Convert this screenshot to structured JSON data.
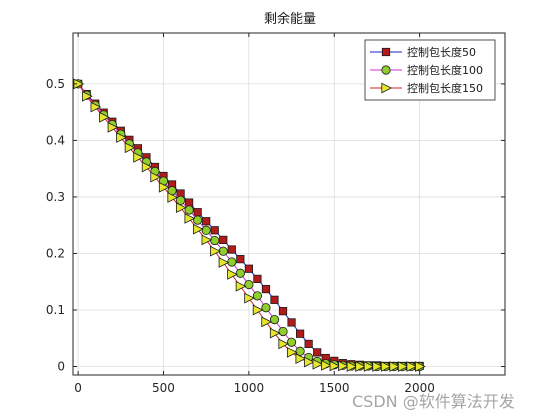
{
  "watermark": "CSDN @软件算法开发",
  "chart_data": {
    "type": "line",
    "title": "剩余能量",
    "xlabel": "",
    "ylabel": "",
    "xlim": [
      -30,
      2500
    ],
    "ylim": [
      -0.015,
      0.59
    ],
    "xticks": [
      0,
      500,
      1000,
      1500,
      2000
    ],
    "yticks": [
      0,
      0.1,
      0.2,
      0.3,
      0.4,
      0.5
    ],
    "xtick_labels": [
      "0",
      "500",
      "1000",
      "1500",
      "2000"
    ],
    "ytick_labels": [
      "0",
      "0.1",
      "0.2",
      "0.3",
      "0.4",
      "0.5"
    ],
    "grid": true,
    "legend_position": "top-right",
    "x": [
      0,
      50,
      100,
      150,
      200,
      250,
      300,
      350,
      400,
      450,
      500,
      550,
      600,
      650,
      700,
      750,
      800,
      850,
      900,
      950,
      1000,
      1050,
      1100,
      1150,
      1200,
      1250,
      1300,
      1350,
      1400,
      1450,
      1500,
      1550,
      1600,
      1650,
      1700,
      1750,
      1800,
      1850,
      1900,
      1950,
      2000
    ],
    "series": [
      {
        "name": "控制包长度50",
        "line_color": "#1f1fd0",
        "marker": "square",
        "marker_fill": "#b31b1b",
        "values": [
          0.5,
          0.482,
          0.465,
          0.449,
          0.433,
          0.417,
          0.401,
          0.386,
          0.37,
          0.353,
          0.337,
          0.322,
          0.306,
          0.29,
          0.273,
          0.257,
          0.241,
          0.224,
          0.207,
          0.19,
          0.173,
          0.155,
          0.137,
          0.118,
          0.098,
          0.078,
          0.058,
          0.04,
          0.025,
          0.015,
          0.01,
          0.006,
          0.004,
          0.003,
          0.002,
          0.002,
          0.001,
          0.001,
          0.001,
          0.001,
          0.001
        ]
      },
      {
        "name": "控制包长度100",
        "line_color": "#cc33cc",
        "marker": "circle",
        "marker_fill": "#8fce2c",
        "values": [
          0.5,
          0.48,
          0.462,
          0.445,
          0.428,
          0.411,
          0.394,
          0.378,
          0.362,
          0.345,
          0.328,
          0.311,
          0.294,
          0.277,
          0.259,
          0.241,
          0.223,
          0.204,
          0.185,
          0.165,
          0.145,
          0.125,
          0.104,
          0.083,
          0.062,
          0.043,
          0.027,
          0.016,
          0.009,
          0.005,
          0.003,
          0.002,
          0.001,
          0.001,
          0.001,
          0.0,
          0.0,
          0.0,
          0.0,
          0.0,
          0.0
        ]
      },
      {
        "name": "控制包长度150",
        "line_color": "#d42020",
        "marker": "triangle-right",
        "marker_fill": "#e6e62e",
        "values": [
          0.5,
          0.478,
          0.459,
          0.441,
          0.423,
          0.405,
          0.387,
          0.37,
          0.353,
          0.335,
          0.317,
          0.299,
          0.281,
          0.262,
          0.243,
          0.224,
          0.204,
          0.184,
          0.163,
          0.142,
          0.121,
          0.1,
          0.079,
          0.059,
          0.04,
          0.025,
          0.014,
          0.008,
          0.004,
          0.002,
          0.001,
          0.001,
          0.0,
          0.0,
          0.0,
          0.0,
          0.0,
          0.0,
          0.0,
          0.0,
          0.0
        ]
      }
    ]
  }
}
